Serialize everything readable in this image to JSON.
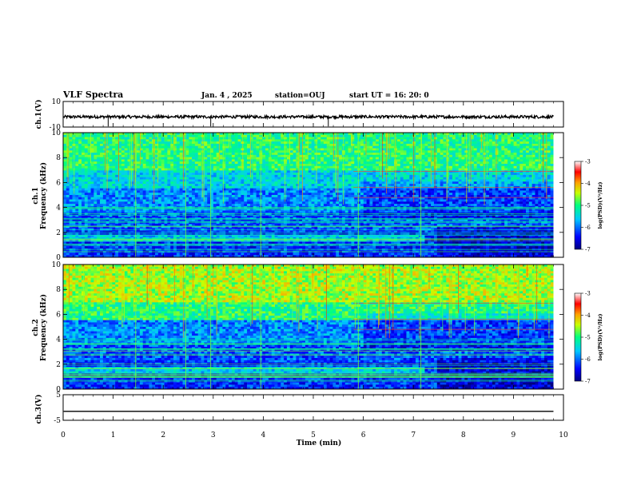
{
  "header": {
    "title": "VLF Spectra",
    "date": "Jan. 4 , 2025",
    "station": "station=OUJ",
    "start": "start UT =  16: 20: 0"
  },
  "chart_data": [
    {
      "type": "line",
      "panel": "ch1-waveform",
      "ylabel": "ch.1(V)",
      "ylim": [
        -10,
        10
      ],
      "y_tick_labels": [
        "10",
        "-10"
      ],
      "xlim": [
        0,
        10
      ],
      "mean_level": -2,
      "notes_visible": "noisy waveform trace"
    },
    {
      "type": "heatmap",
      "panel": "ch1-spectrogram",
      "ylabel_top": "ch.1",
      "ylabel": "Frequency (kHz)",
      "ylim": [
        0,
        10
      ],
      "y_tick_labels": [
        "0",
        "2",
        "4",
        "6",
        "8",
        "10"
      ],
      "xlim": [
        0,
        10
      ],
      "colorbar": {
        "label": "log(PSD)(V²/Hz)",
        "range": [
          -7,
          -3
        ],
        "tick_labels": [
          "-3",
          "-4",
          "-5",
          "-6",
          "-7"
        ]
      }
    },
    {
      "type": "heatmap",
      "panel": "ch2-spectrogram",
      "ylabel_top": "ch.2",
      "ylabel": "Frequency (kHz)",
      "ylim": [
        0,
        10
      ],
      "y_tick_labels": [
        "0",
        "2",
        "4",
        "6",
        "8",
        "10"
      ],
      "xlim": [
        0,
        10
      ],
      "colorbar": {
        "label": "log(PSD)(V²/Hz)",
        "range": [
          -7,
          -3
        ],
        "tick_labels": [
          "-3",
          "-4",
          "-5",
          "-6",
          "-7"
        ]
      }
    },
    {
      "type": "line",
      "panel": "ch3-waveform",
      "ylabel": "ch.3(V)",
      "ylim": [
        -5,
        5
      ],
      "y_tick_labels": [
        "5",
        "-5"
      ],
      "xlim": [
        0,
        10
      ],
      "mean_level": -1.5
    }
  ],
  "xaxis": {
    "label": "Time (min)",
    "tick_labels": [
      "0",
      "1",
      "2",
      "3",
      "4",
      "5",
      "6",
      "7",
      "8",
      "9",
      "10"
    ]
  }
}
